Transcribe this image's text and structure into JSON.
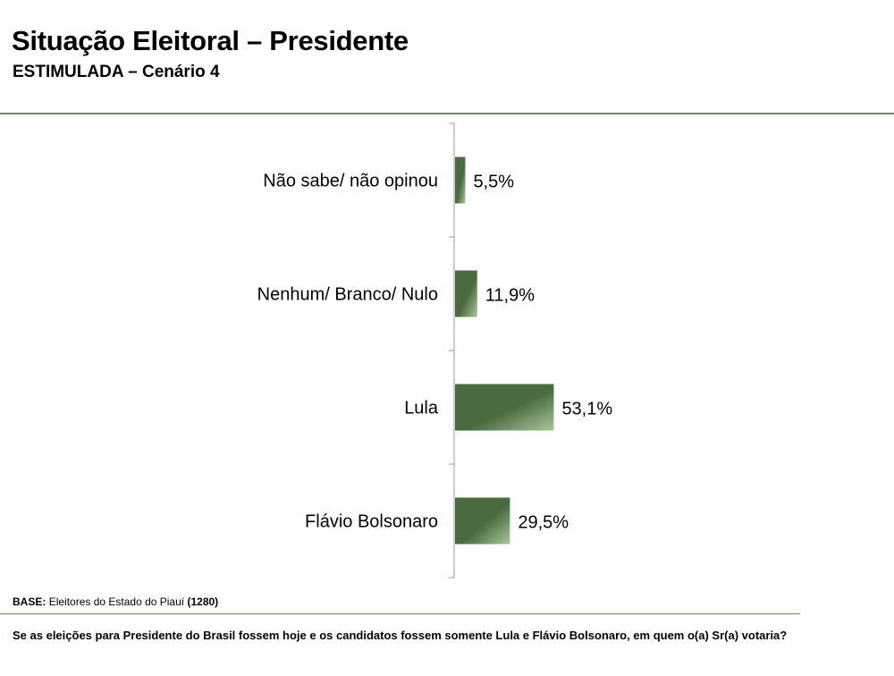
{
  "header": {
    "title": "Situação Eleitoral – Presidente",
    "subtitle": "ESTIMULADA – Cenário 4"
  },
  "chart_data": {
    "type": "bar",
    "orientation": "horizontal",
    "categories": [
      "Não sabe/ não opinou",
      "Nenhum/ Branco/ Nulo",
      "Lula",
      "Flávio Bolsonaro"
    ],
    "values": [
      5.5,
      11.9,
      53.1,
      29.5
    ],
    "data_labels": [
      "5,5%",
      "11,9%",
      "53,1%",
      "29,5%"
    ],
    "value_unit": "%",
    "xlim": [
      0,
      100
    ],
    "grid": false,
    "bar_color": "#4a6a40",
    "bar_highlight": "#a9c79b"
  },
  "footer": {
    "base_label": "BASE:",
    "base_text": "Eleitores do Estado do Piauí",
    "base_count": "(1280)",
    "question": "Se as eleições para Presidente do Brasil fossem hoje e os candidatos fossem somente Lula e Flávio Bolsonaro, em quem o(a) Sr(a) votaria?"
  }
}
